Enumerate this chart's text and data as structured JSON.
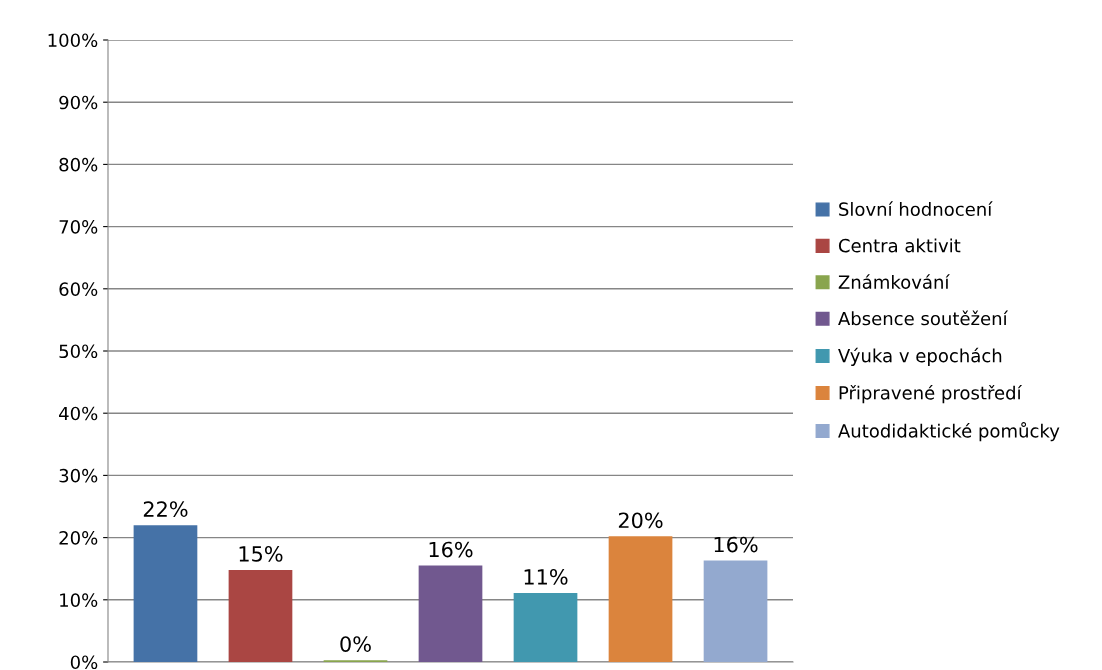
{
  "chart_data": {
    "type": "bar",
    "categories": [
      null
    ],
    "series": [
      {
        "name": "Slovní hodnocení",
        "color": "#4572a7",
        "values": [
          22.0
        ],
        "value_labels": [
          "22%"
        ]
      },
      {
        "name": "Centra aktivit",
        "color": "#aa4643",
        "values": [
          14.8
        ],
        "value_labels": [
          "15%"
        ]
      },
      {
        "name": "Známkování",
        "color": "#89a54e",
        "values": [
          0.3
        ],
        "value_labels": [
          "0%"
        ]
      },
      {
        "name": "Absence soutěžení",
        "color": "#71588f",
        "values": [
          15.5
        ],
        "value_labels": [
          "16%"
        ]
      },
      {
        "name": "Výuka v epochách",
        "color": "#4198af",
        "values": [
          11.1
        ],
        "value_labels": [
          "11%"
        ]
      },
      {
        "name": "Připravené prostředí",
        "color": "#db843d",
        "values": [
          20.2
        ],
        "value_labels": [
          "20%"
        ]
      },
      {
        "name": "Autodidaktické pomůcky",
        "color": "#93a9cf",
        "values": [
          16.3
        ],
        "value_labels": [
          "16%"
        ]
      }
    ],
    "ylim": [
      0,
      100
    ],
    "yticks": [
      {
        "value": 0,
        "label": "0%"
      },
      {
        "value": 10,
        "label": "10%"
      },
      {
        "value": 20,
        "label": "20%"
      },
      {
        "value": 30,
        "label": "30%"
      },
      {
        "value": 40,
        "label": "40%"
      },
      {
        "value": 50,
        "label": "50%"
      },
      {
        "value": 60,
        "label": "60%"
      },
      {
        "value": 70,
        "label": "70%"
      },
      {
        "value": 80,
        "label": "80%"
      },
      {
        "value": 90,
        "label": "90%"
      },
      {
        "value": 100,
        "label": "100%"
      }
    ],
    "grid": "y",
    "legend": "right"
  }
}
